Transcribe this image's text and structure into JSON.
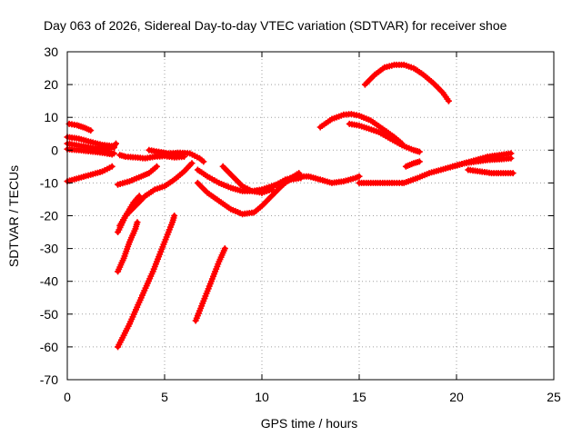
{
  "chart_data": {
    "type": "scatter",
    "title": "Day 063 of 2026, Sidereal Day-to-day VTEC variation (SDTVAR) for receiver shoe",
    "xlabel": "GPS time / hours",
    "ylabel": "SDTVAR / TECUs",
    "xlim": [
      0,
      25
    ],
    "ylim": [
      -70,
      30
    ],
    "xticks": [
      "0",
      "5",
      "10",
      "15",
      "20",
      "25"
    ],
    "yticks": [
      "-70",
      "-60",
      "-50",
      "-40",
      "-30",
      "-20",
      "-10",
      "0",
      "10",
      "20",
      "30"
    ],
    "grid": true,
    "marker": "plus",
    "color": "#ff0000",
    "series": [
      {
        "name": "s1",
        "points": [
          [
            0.1,
            8
          ],
          [
            0.5,
            7.6
          ],
          [
            0.9,
            6.8
          ],
          [
            1.2,
            6
          ]
        ]
      },
      {
        "name": "s2",
        "points": [
          [
            0.0,
            4
          ],
          [
            0.6,
            3.5
          ],
          [
            1.2,
            2.5
          ],
          [
            1.8,
            1.6
          ],
          [
            2.4,
            1.2
          ],
          [
            2.5,
            2
          ]
        ]
      },
      {
        "name": "s3",
        "points": [
          [
            0.0,
            2
          ],
          [
            0.6,
            1.4
          ],
          [
            1.2,
            0.8
          ],
          [
            1.8,
            0.4
          ],
          [
            2.4,
            0.8
          ]
        ]
      },
      {
        "name": "s4",
        "points": [
          [
            0.0,
            0.3
          ],
          [
            0.6,
            0
          ],
          [
            1.2,
            -0.4
          ],
          [
            1.8,
            -0.8
          ],
          [
            2.3,
            -1.3
          ]
        ]
      },
      {
        "name": "s5",
        "points": [
          [
            0.0,
            -9.5
          ],
          [
            0.6,
            -8.5
          ],
          [
            1.2,
            -7.5
          ],
          [
            1.8,
            -6.5
          ],
          [
            2.3,
            -5
          ]
        ]
      },
      {
        "name": "s6",
        "points": [
          [
            2.0,
            -0.5
          ],
          [
            2.4,
            -1
          ]
        ]
      },
      {
        "name": "s7",
        "points": [
          [
            2.7,
            -1.5
          ],
          [
            3.0,
            -2
          ],
          [
            3.5,
            -2.2
          ],
          [
            4.0,
            -2.5
          ],
          [
            4.5,
            -2
          ],
          [
            5.0,
            -1.8
          ],
          [
            5.5,
            -2.2
          ],
          [
            6.0,
            -2
          ]
        ]
      },
      {
        "name": "s8",
        "points": [
          [
            4.2,
            0
          ],
          [
            4.7,
            -0.5
          ],
          [
            5.2,
            -1
          ],
          [
            5.8,
            -0.8
          ],
          [
            6.3,
            -1
          ],
          [
            6.8,
            -2.5
          ],
          [
            7.0,
            -3.5
          ]
        ]
      },
      {
        "name": "s9",
        "points": [
          [
            2.6,
            -10.5
          ],
          [
            3.2,
            -9.5
          ],
          [
            3.8,
            -8
          ],
          [
            4.2,
            -7
          ],
          [
            4.6,
            -5
          ]
        ]
      },
      {
        "name": "s10",
        "points": [
          [
            2.7,
            -23
          ],
          [
            3.0,
            -20
          ],
          [
            3.5,
            -17
          ],
          [
            4.0,
            -14
          ],
          [
            4.5,
            -12
          ],
          [
            5.0,
            -11
          ],
          [
            5.5,
            -9
          ],
          [
            6.0,
            -6.5
          ],
          [
            6.4,
            -4
          ]
        ]
      },
      {
        "name": "s11",
        "points": [
          [
            2.6,
            -25
          ],
          [
            3.0,
            -20
          ],
          [
            3.4,
            -16
          ],
          [
            3.7,
            -14
          ]
        ]
      },
      {
        "name": "s12",
        "points": [
          [
            2.6,
            -37
          ],
          [
            2.9,
            -33
          ],
          [
            3.2,
            -28
          ],
          [
            3.5,
            -24
          ],
          [
            3.6,
            -22
          ]
        ]
      },
      {
        "name": "s13",
        "points": [
          [
            2.6,
            -60
          ],
          [
            3.2,
            -53
          ],
          [
            3.8,
            -45
          ],
          [
            4.4,
            -37
          ],
          [
            5.0,
            -28
          ],
          [
            5.4,
            -22
          ],
          [
            5.5,
            -20
          ]
        ]
      },
      {
        "name": "s14",
        "points": [
          [
            6.6,
            -52
          ],
          [
            7.0,
            -46
          ],
          [
            7.4,
            -40
          ],
          [
            7.8,
            -34
          ],
          [
            8.1,
            -30
          ]
        ]
      },
      {
        "name": "s15",
        "points": [
          [
            6.7,
            -6
          ],
          [
            7.2,
            -8
          ],
          [
            7.8,
            -10
          ],
          [
            8.4,
            -11.5
          ],
          [
            9.0,
            -12.5
          ],
          [
            9.5,
            -12.5
          ],
          [
            10.0,
            -12
          ],
          [
            10.5,
            -11
          ],
          [
            11.0,
            -10
          ],
          [
            11.5,
            -9
          ],
          [
            12.0,
            -8.5
          ]
        ]
      },
      {
        "name": "s16",
        "points": [
          [
            6.7,
            -10
          ],
          [
            7.2,
            -13
          ],
          [
            7.8,
            -15.5
          ],
          [
            8.4,
            -18
          ],
          [
            9.0,
            -19.5
          ],
          [
            9.6,
            -19
          ],
          [
            10.0,
            -17
          ],
          [
            10.5,
            -14
          ],
          [
            11.0,
            -11
          ],
          [
            11.5,
            -8.5
          ],
          [
            11.9,
            -7
          ]
        ]
      },
      {
        "name": "s17",
        "points": [
          [
            8.0,
            -5
          ],
          [
            8.5,
            -8
          ],
          [
            9.0,
            -11
          ],
          [
            9.5,
            -12.5
          ],
          [
            10.0,
            -13
          ],
          [
            10.5,
            -12
          ]
        ]
      },
      {
        "name": "s18",
        "points": [
          [
            10.0,
            -13
          ],
          [
            10.6,
            -11
          ],
          [
            11.2,
            -9
          ],
          [
            11.8,
            -8
          ],
          [
            12.4,
            -8
          ],
          [
            13.0,
            -9
          ],
          [
            13.6,
            -10
          ],
          [
            14.2,
            -9.5
          ],
          [
            14.8,
            -8.5
          ],
          [
            15.0,
            -8
          ]
        ]
      },
      {
        "name": "s19",
        "points": [
          [
            15.0,
            -10
          ],
          [
            15.6,
            -10
          ],
          [
            16.2,
            -10
          ],
          [
            16.8,
            -10
          ],
          [
            17.2,
            -10
          ]
        ]
      },
      {
        "name": "s20",
        "points": [
          [
            17.3,
            -10
          ],
          [
            18.0,
            -8.5
          ],
          [
            18.6,
            -7
          ],
          [
            19.2,
            -6
          ],
          [
            19.8,
            -5
          ],
          [
            20.4,
            -4
          ],
          [
            21.0,
            -3
          ],
          [
            21.6,
            -2
          ],
          [
            22.2,
            -1.5
          ],
          [
            22.8,
            -1
          ]
        ]
      },
      {
        "name": "s21",
        "points": [
          [
            19.8,
            -5
          ],
          [
            20.4,
            -4
          ],
          [
            21.0,
            -3.5
          ],
          [
            21.6,
            -3
          ],
          [
            22.2,
            -2.8
          ],
          [
            22.8,
            -2.5
          ]
        ]
      },
      {
        "name": "s22",
        "points": [
          [
            20.6,
            -6
          ],
          [
            21.2,
            -6.5
          ],
          [
            21.8,
            -7
          ],
          [
            22.4,
            -7
          ],
          [
            22.9,
            -7
          ]
        ]
      },
      {
        "name": "s23",
        "points": [
          [
            17.4,
            -5
          ],
          [
            17.8,
            -4
          ],
          [
            18.1,
            -3.5
          ]
        ]
      },
      {
        "name": "s24",
        "points": [
          [
            13.0,
            7
          ],
          [
            13.6,
            9.5
          ],
          [
            14.2,
            10.8
          ],
          [
            14.6,
            11
          ],
          [
            15.0,
            10.5
          ],
          [
            15.6,
            9
          ],
          [
            16.2,
            6.5
          ],
          [
            16.8,
            4
          ],
          [
            17.2,
            2
          ]
        ]
      },
      {
        "name": "s25",
        "points": [
          [
            14.5,
            8
          ],
          [
            15.0,
            7.5
          ],
          [
            15.5,
            6.5
          ],
          [
            16.0,
            5.5
          ],
          [
            16.6,
            3.5
          ],
          [
            17.2,
            1.5
          ],
          [
            17.8,
            0
          ],
          [
            18.1,
            -0.5
          ]
        ]
      },
      {
        "name": "s26",
        "points": [
          [
            15.3,
            20
          ],
          [
            15.8,
            23
          ],
          [
            16.3,
            25.2
          ],
          [
            16.8,
            26
          ],
          [
            17.3,
            26
          ],
          [
            17.8,
            25
          ],
          [
            18.3,
            23
          ],
          [
            18.8,
            20.5
          ],
          [
            19.3,
            17.5
          ],
          [
            19.6,
            15
          ]
        ]
      }
    ]
  }
}
